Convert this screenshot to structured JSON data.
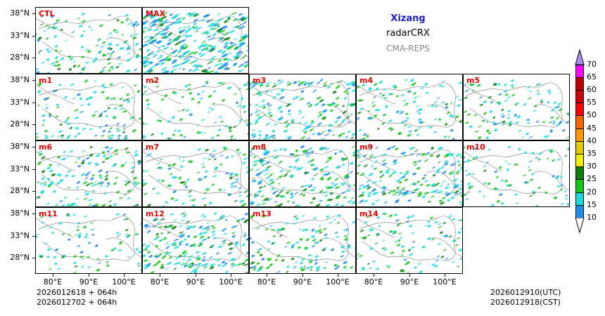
{
  "title": {
    "region": "Xizang",
    "product": "radarCRX",
    "system": "CMA-REPS"
  },
  "panels": [
    {
      "label": "CTL",
      "density": 0.35,
      "seed": 3
    },
    {
      "label": "MAX",
      "density": 1.0,
      "seed": 7
    },
    {
      "label": "m1",
      "density": 0.3,
      "seed": 11
    },
    {
      "label": "m2",
      "density": 0.22,
      "seed": 13
    },
    {
      "label": "m3",
      "density": 0.55,
      "seed": 17
    },
    {
      "label": "m4",
      "density": 0.3,
      "seed": 19
    },
    {
      "label": "m5",
      "density": 0.28,
      "seed": 23
    },
    {
      "label": "m6",
      "density": 0.4,
      "seed": 29
    },
    {
      "label": "m7",
      "density": 0.3,
      "seed": 31
    },
    {
      "label": "m8",
      "density": 0.6,
      "seed": 37
    },
    {
      "label": "m9",
      "density": 0.55,
      "seed": 41
    },
    {
      "label": "m10",
      "density": 0.2,
      "seed": 43
    },
    {
      "label": "m11",
      "density": 0.18,
      "seed": 47
    },
    {
      "label": "m12",
      "density": 0.6,
      "seed": 53
    },
    {
      "label": "m13",
      "density": 0.35,
      "seed": 59
    },
    {
      "label": "m14",
      "density": 0.25,
      "seed": 61
    }
  ],
  "axes": {
    "lat_labels": [
      "38°N",
      "33°N",
      "28°N"
    ],
    "lon_labels": [
      "80°E",
      "90°E",
      "100°E"
    ]
  },
  "colorbar": {
    "levels": [
      "10",
      "15",
      "20",
      "25",
      "30",
      "35",
      "40",
      "45",
      "50",
      "55",
      "60",
      "65",
      "70"
    ],
    "colors": [
      "#1e8cf0",
      "#18dcdc",
      "#14c814",
      "#0a820a",
      "#f0f000",
      "#e6c800",
      "#ff9600",
      "#ff6400",
      "#ff0000",
      "#d20000",
      "#be0000",
      "#ff00ff",
      "#9a00b4",
      "#ad90f0"
    ]
  },
  "footer": {
    "init1": "2026012618  +  064h",
    "init2": "2026012702  +  064h",
    "valid_utc": "2026012910(UTC)",
    "valid_cst": "2026012918(CST)"
  }
}
